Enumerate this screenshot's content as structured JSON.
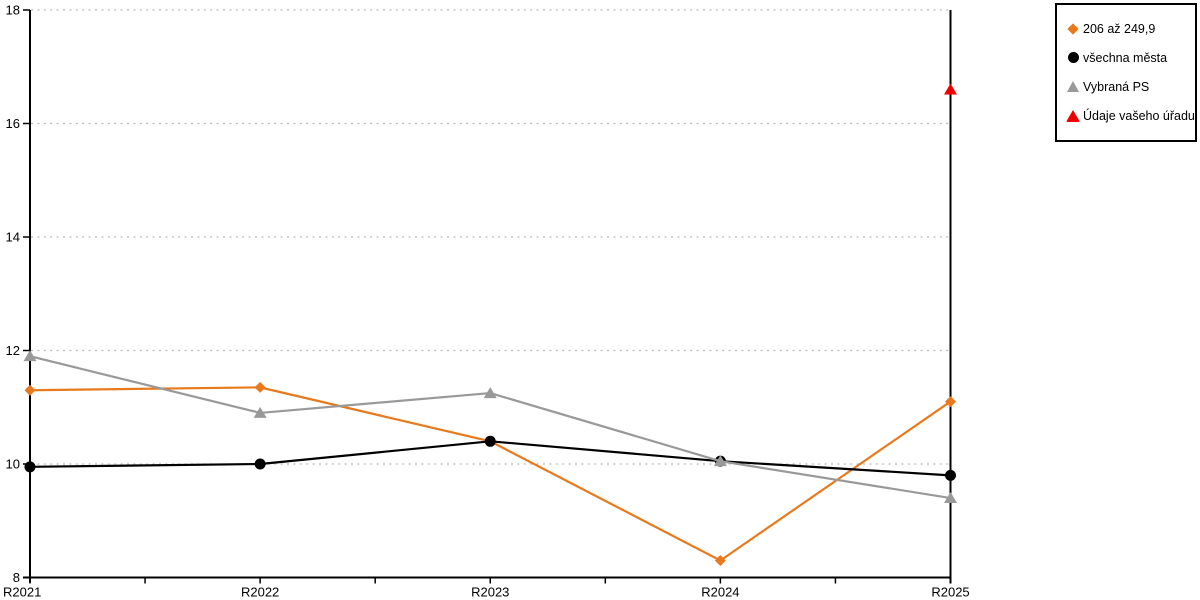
{
  "chart_data": {
    "type": "line",
    "title": "",
    "xlabel": "",
    "ylabel": "",
    "categories": [
      "R2021",
      "R2022",
      "R2023",
      "R2024",
      "R2025"
    ],
    "ylim": [
      8,
      18
    ],
    "yticks": [
      8,
      10,
      12,
      14,
      16,
      18
    ],
    "grid": "dotted horizontal",
    "legend_position": "top-right",
    "series": [
      {
        "key": "206-az-249-9",
        "name": "206 až 249,9",
        "color": "#E8791C",
        "marker": "diamond",
        "values": [
          11.3,
          11.35,
          10.4,
          8.3,
          11.1
        ]
      },
      {
        "key": "vsechna-mesta",
        "name": "všechna města",
        "color": "#000000",
        "marker": "circle",
        "values": [
          9.95,
          10.0,
          10.4,
          10.05,
          9.8
        ]
      },
      {
        "key": "vybrana-ps",
        "name": "Vybraná PS",
        "color": "#999999",
        "marker": "triangle",
        "values": [
          11.9,
          10.9,
          11.25,
          10.05,
          9.4
        ]
      },
      {
        "key": "udaje-vaseho-uradu",
        "name": "Údaje vašeho úřadu",
        "color": "#EE0000",
        "marker": "triangle",
        "values": [
          null,
          null,
          null,
          null,
          16.6
        ]
      }
    ],
    "colors": {
      "axis": "#000000",
      "gridline": "#B8B8B8",
      "tick_label": "#000000",
      "background": "#FFFFFF"
    }
  }
}
